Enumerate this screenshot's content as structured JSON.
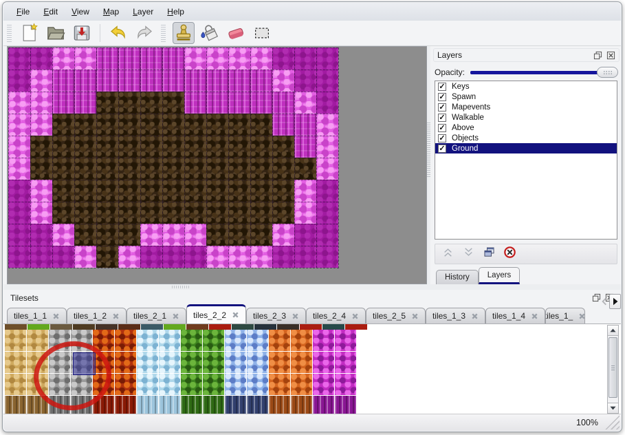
{
  "menu_bar": {
    "items": [
      {
        "label": "File"
      },
      {
        "label": "Edit"
      },
      {
        "label": "View"
      },
      {
        "label": "Map"
      },
      {
        "label": "Layer"
      },
      {
        "label": "Help"
      }
    ]
  },
  "toolbar": {
    "groups": [
      {
        "buttons": [
          "new-file-icon",
          "open-file-icon",
          "save-file-icon",
          "separator",
          "undo-icon",
          "redo-icon"
        ],
        "active": null
      },
      {
        "buttons": [
          "stamp-tool-icon",
          "fill-tool-icon",
          "eraser-tool-icon",
          "select-tool-icon"
        ],
        "active": "stamp-tool-icon"
      }
    ]
  },
  "layers_panel": {
    "title": "Layers",
    "opacity_label": "Opacity:",
    "opacity_slider_position": "max",
    "layers": [
      {
        "name": "Keys",
        "visible": true,
        "selected": false
      },
      {
        "name": "Spawn",
        "visible": true,
        "selected": false
      },
      {
        "name": "Mapevents",
        "visible": true,
        "selected": false
      },
      {
        "name": "Walkable",
        "visible": true,
        "selected": false
      },
      {
        "name": "Above",
        "visible": true,
        "selected": false
      },
      {
        "name": "Objects",
        "visible": true,
        "selected": false
      },
      {
        "name": "Ground",
        "visible": true,
        "selected": true
      }
    ],
    "action_icons": [
      "raise-layer-icon",
      "lower-layer-icon",
      "duplicate-layer-icon",
      "delete-layer-icon"
    ],
    "tabs": [
      {
        "label": "History",
        "active": false
      },
      {
        "label": "Layers",
        "active": true
      }
    ]
  },
  "tilesets_panel": {
    "title": "Tilesets",
    "tabs": [
      {
        "label": "tiles_1_1",
        "active": false,
        "truncated": false
      },
      {
        "label": "tiles_1_2",
        "active": false,
        "truncated": false
      },
      {
        "label": "tiles_2_1",
        "active": false,
        "truncated": false
      },
      {
        "label": "tiles_2_2",
        "active": true,
        "truncated": false
      },
      {
        "label": "tiles_2_3",
        "active": false,
        "truncated": false
      },
      {
        "label": "tiles_2_4",
        "active": false,
        "truncated": false
      },
      {
        "label": "tiles_2_5",
        "active": false,
        "truncated": false
      },
      {
        "label": "tiles_1_3",
        "active": false,
        "truncated": false
      },
      {
        "label": "tiles_1_4",
        "active": false,
        "truncated": false
      },
      {
        "label": "tiles_1_",
        "active": false,
        "truncated": true
      }
    ]
  },
  "status_bar": {
    "zoom_level": "100%"
  },
  "map": {
    "tile_size": 32,
    "columns": 15,
    "rows": 10,
    "legend": {
      "D": "dark-magenta-rock",
      "L": "light-pink-rock",
      "W": "magenta-wall",
      "B": "brown-cave-floor"
    },
    "grid": [
      "DDLLWWWWLLLLDDD",
      "DLWWWWWWWWWWLDD",
      "LLWWBBBBWWWWWLD",
      "LLBBBBBBBBBBWWL",
      "LBBBBBBBBBBBBWL",
      "LBBBBBBBBBBBBBL",
      "DLBBBBBBBBBBBLD",
      "DLBBBBBBBBBBBLD",
      "DDLBBBLLLBBBLDD",
      "DDDLBLDDDLLLDDD"
    ]
  },
  "tileset_grid": {
    "tile_size": 33,
    "visible_rows": 3,
    "columns": [
      "sand",
      "sand",
      "rock",
      "rock",
      "lava",
      "lava",
      "ice",
      "ice",
      "vine",
      "vine",
      "crystal",
      "crystal",
      "ember",
      "ember",
      "magma",
      "magma"
    ],
    "header_sliver_colors": [
      "#6e4f2a",
      "#63a81e",
      "#6b5a40",
      "#4f3b22",
      "#463328",
      "#5a2d18",
      "#3c5a66",
      "#63a81e",
      "#703c1e",
      "#aa1d10",
      "#2f4a42",
      "#27323c",
      "#3a2f28",
      "#aa1d10",
      "#274a4a",
      "#aa1d10"
    ],
    "selected_tile": {
      "col": 3,
      "row": 1
    },
    "annotation": "red-circle"
  },
  "colors": {
    "accent_navy": "#12127e",
    "selection_blue": "#303096",
    "annotation_red": "#cc1610",
    "map_backdrop": "#8d8d8d"
  }
}
